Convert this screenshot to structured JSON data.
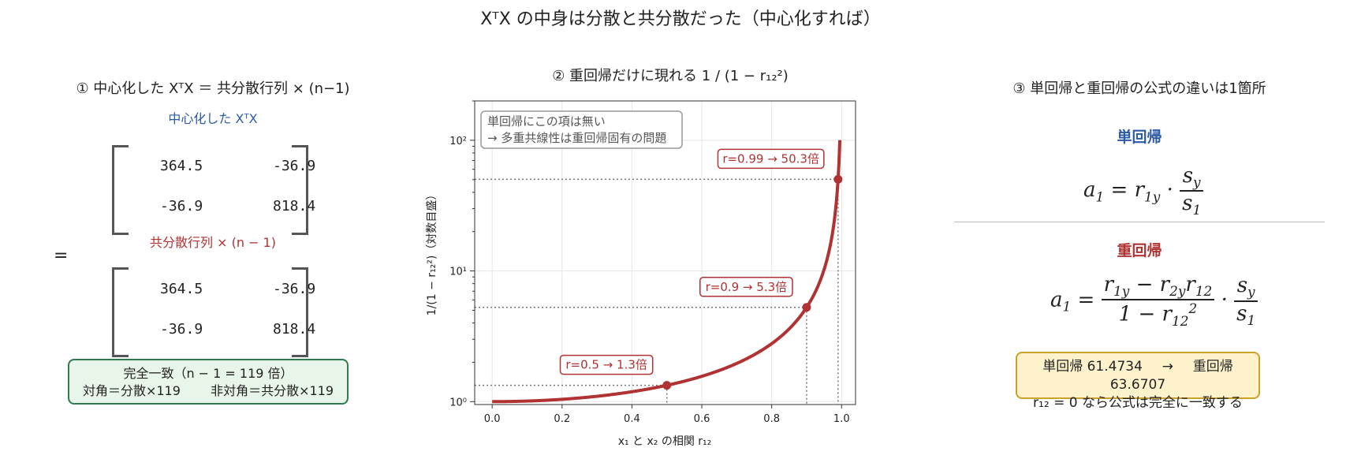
{
  "title": "XᵀX の中身は分散と共分散だった（中心化すれば）",
  "panel1": {
    "title": "① 中心化した XᵀX ＝ 共分散行列 × (n−1)",
    "label_top": "中心化した XᵀX",
    "label_bottom": "共分散行列 × (n − 1)",
    "equals": "=",
    "matrix_top": [
      [
        "364.5",
        "-36.9"
      ],
      [
        "-36.9",
        "818.4"
      ]
    ],
    "matrix_bottom": [
      [
        "364.5",
        "-36.9"
      ],
      [
        "-36.9",
        "818.4"
      ]
    ],
    "box_line1": "完全一致（n − 1 = 119 倍）",
    "box_line2a": "対角＝分散×119",
    "box_line2b": "非対角＝共分散×119",
    "colors": {
      "blue": "#2b5aa8",
      "red": "#b03232",
      "green": "#2e7d4f"
    }
  },
  "chart_data": {
    "type": "line",
    "title": "② 重回帰だけに現れる 1 / (1 − r₁₂²)",
    "xlabel": "x₁ と x₂ の相関 r₁₂",
    "ylabel": "1/(1 − r₁₂²)（対数目盛）",
    "yscale": "log",
    "xlim": [
      -0.05,
      1.04
    ],
    "ylim": [
      0.95,
      200
    ],
    "x_ticks": [
      "0.0",
      "0.2",
      "0.4",
      "0.6",
      "0.8",
      "1.0"
    ],
    "y_ticks": [
      "10⁰",
      "10¹",
      "10²"
    ],
    "grid": true,
    "series": [
      {
        "color": "#b03232",
        "formula": "1/(1-r^2)",
        "x_from": 0,
        "x_to": 0.995
      }
    ],
    "points": [
      {
        "x": 0.5,
        "y": 1.333,
        "label": "r=0.5 → 1.3倍"
      },
      {
        "x": 0.9,
        "y": 5.263,
        "label": "r=0.9 → 5.3倍"
      },
      {
        "x": 0.99,
        "y": 50.25,
        "label": "r=0.99 → 50.3倍"
      }
    ],
    "note_line1": "単回帰にこの項は無い",
    "note_line2": "→ 多重共線性は重回帰固有の問題"
  },
  "panel3": {
    "title": "③ 単回帰と重回帰の公式の違いは1箇所",
    "simple_heading": "単回帰",
    "multiple_heading": "重回帰",
    "box_line1a": "単回帰 61.4734",
    "box_arrow": "→",
    "box_line1b": "重回帰 63.6707",
    "box_line2": "r₁₂ = 0 なら公式は完全に一致する"
  }
}
